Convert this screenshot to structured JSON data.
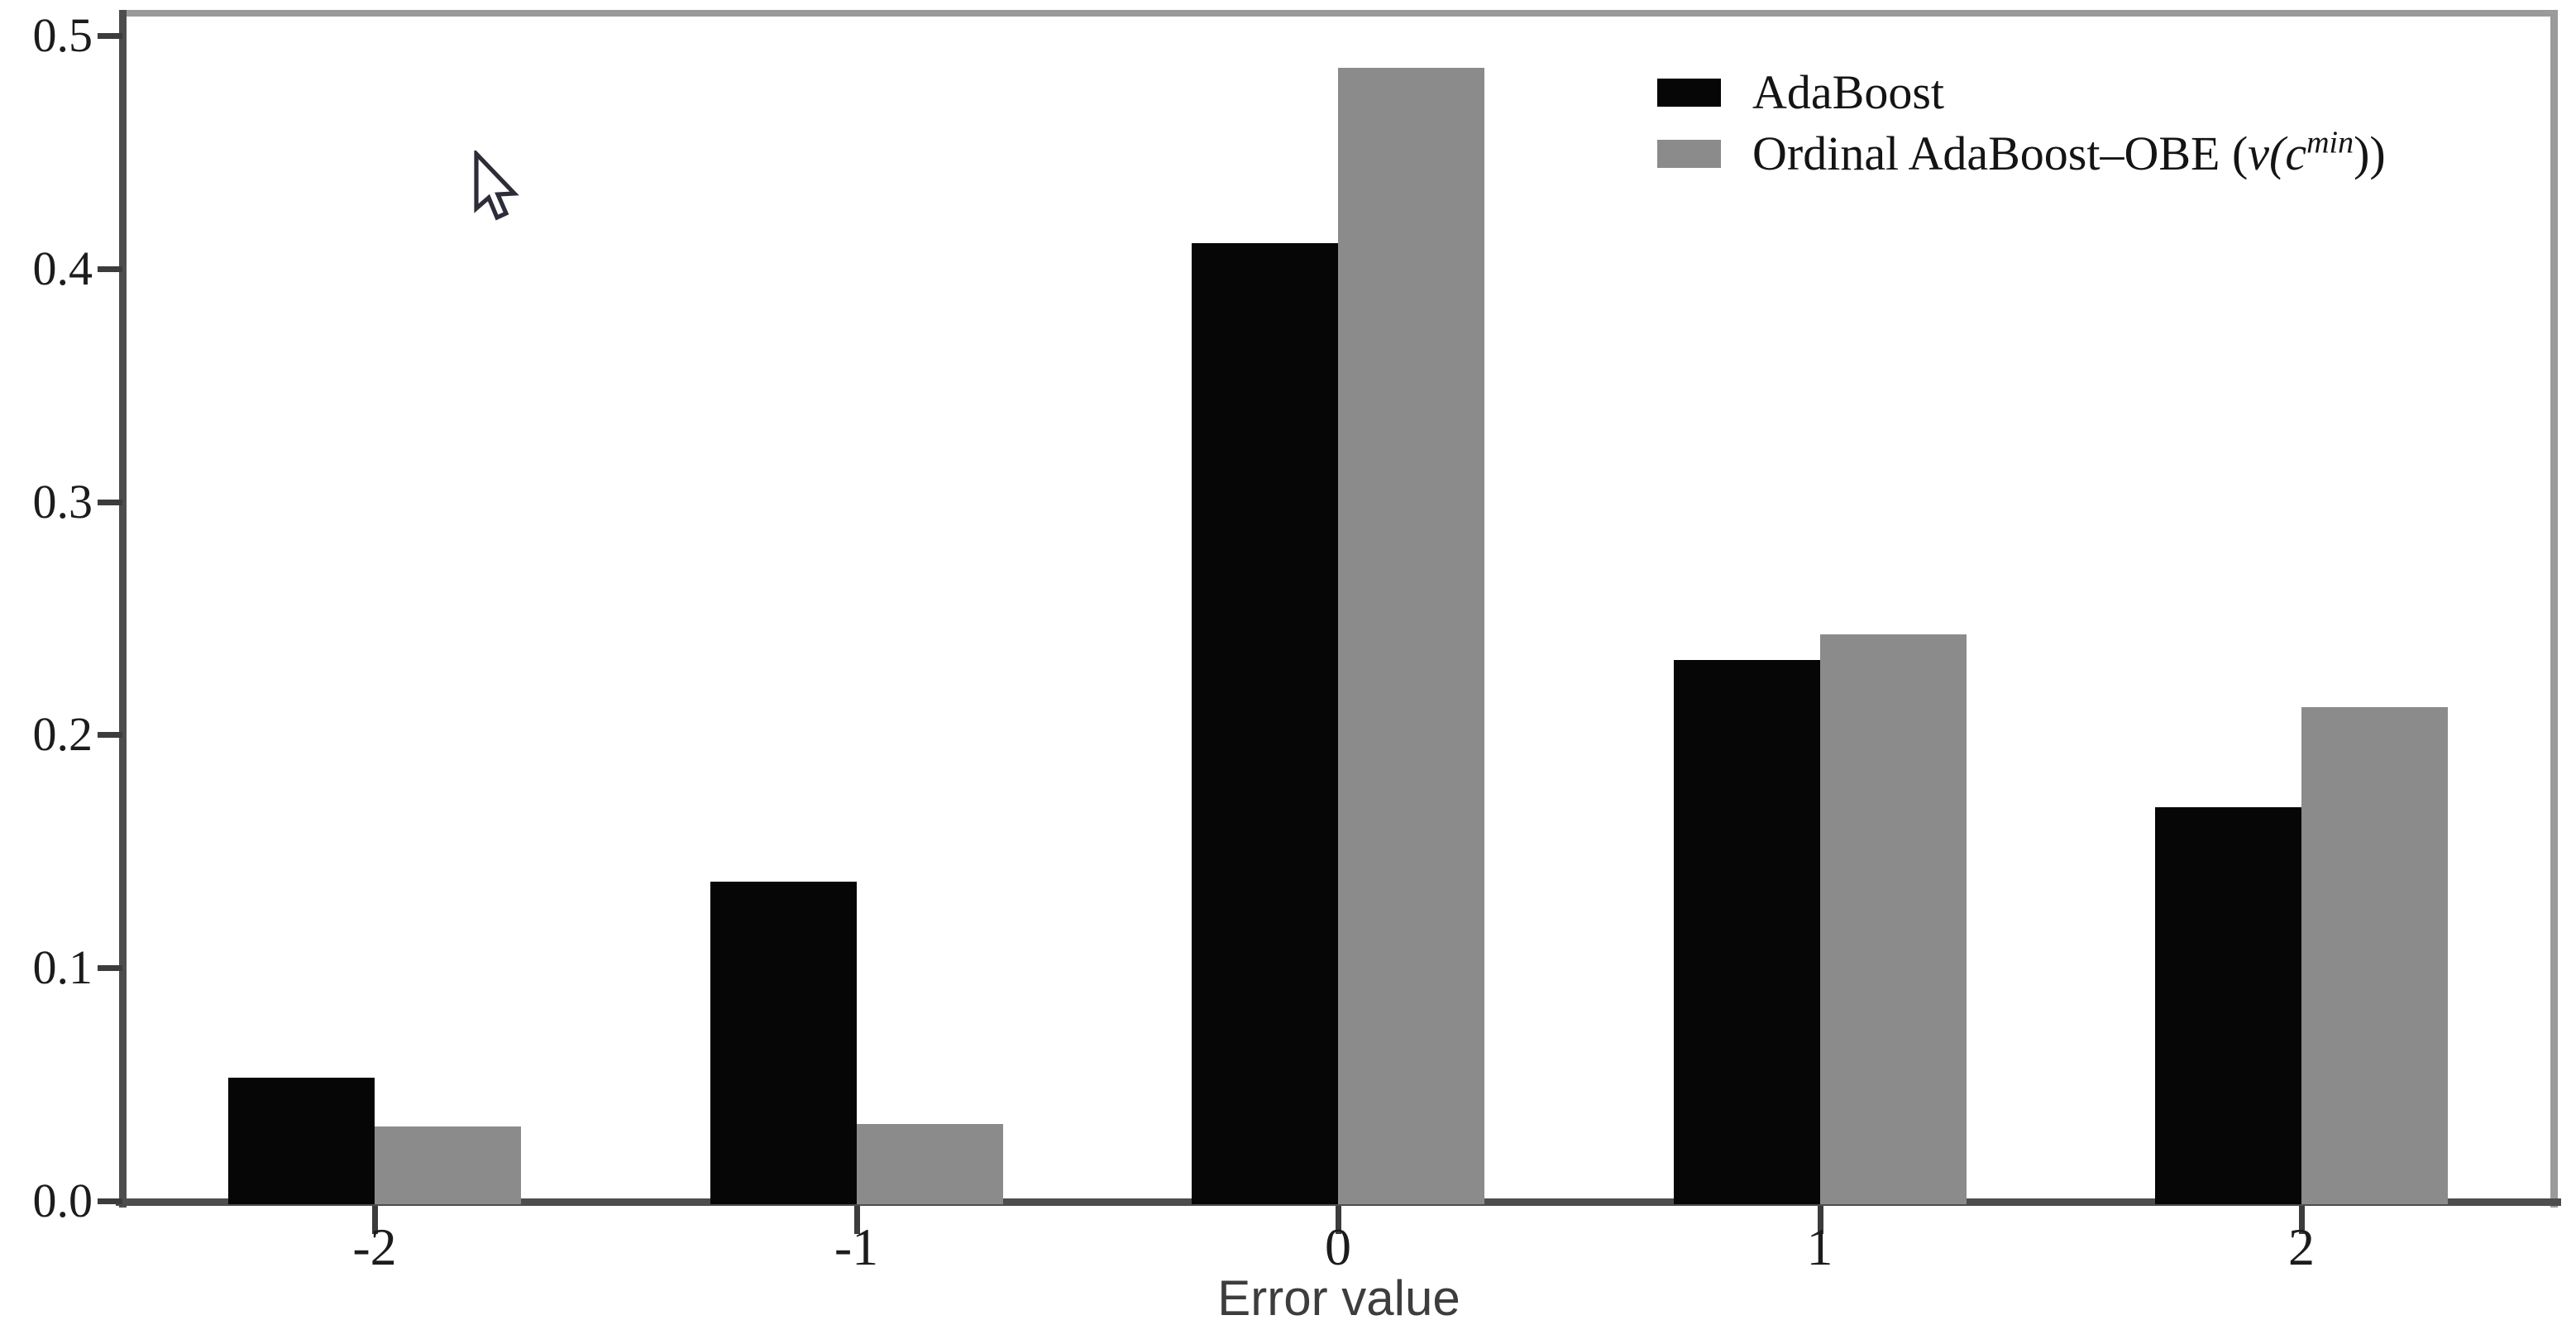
{
  "chart_data": {
    "type": "bar",
    "title": "",
    "xlabel": "Error value",
    "ylabel": "",
    "categories": [
      "-2",
      "-1",
      "0",
      "1",
      "2"
    ],
    "series": [
      {
        "name": "AdaBoost",
        "color": "#060606",
        "values": [
          0.053,
          0.137,
          0.411,
          0.232,
          0.169
        ]
      },
      {
        "name": "Ordinal AdaBoost–OBE (v(c^min))",
        "color": "#8b8b8b",
        "values": [
          0.032,
          0.033,
          0.486,
          0.243,
          0.212
        ]
      }
    ],
    "ylim": [
      0.0,
      0.5
    ],
    "yticks": [
      "0.0",
      "0.1",
      "0.2",
      "0.3",
      "0.4",
      "0.5"
    ],
    "grid": false,
    "legend_position": "upper right"
  },
  "axes": {
    "xlabel": "Error value"
  },
  "legend": {
    "item1_label": "AdaBoost",
    "item2_prefix": "Ordinal AdaBoost–OBE (",
    "item2_math": "v(c",
    "item2_sup": "min",
    "item2_suffix": "))"
  },
  "colors": {
    "series1": "#060606",
    "series2": "#8b8b8b",
    "spine_dark": "#4d4d4d",
    "spine_light": "#9a9a9a"
  }
}
